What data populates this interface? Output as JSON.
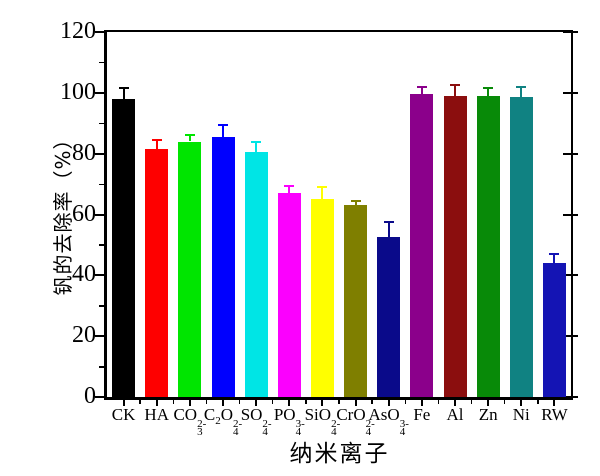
{
  "chart_data": {
    "type": "bar",
    "title": "",
    "xlabel": "纳米离子",
    "ylabel": "钒的去除率（%）",
    "ylim": [
      0,
      120
    ],
    "yticks": [
      0,
      20,
      40,
      60,
      80,
      100,
      120
    ],
    "ytick_minor_interval": 10,
    "grid": false,
    "legend": "none",
    "error_bars": "upper",
    "axis_color": "#000000",
    "categories": [
      {
        "name": "CK",
        "segments": [
          {
            "t": "CK"
          }
        ]
      },
      {
        "name": "HA",
        "segments": [
          {
            "t": "HA"
          }
        ]
      },
      {
        "name": "CO3 2-",
        "segments": [
          {
            "t": "CO"
          },
          {
            "sub": "3",
            "sup": "2-"
          }
        ]
      },
      {
        "name": "C2O4 2-",
        "segments": [
          {
            "t": "C"
          },
          {
            "sub": "2"
          },
          {
            "t": "O"
          },
          {
            "sub": "4",
            "sup": "2-"
          }
        ]
      },
      {
        "name": "SO4 2-",
        "segments": [
          {
            "t": "SO"
          },
          {
            "sub": "4",
            "sup": "2-"
          }
        ]
      },
      {
        "name": "PO4 3-",
        "segments": [
          {
            "t": "PO"
          },
          {
            "sub": "4",
            "sup": "3-"
          }
        ]
      },
      {
        "name": "SiO4 2-",
        "segments": [
          {
            "t": "SiO"
          },
          {
            "sub": "4",
            "sup": "2-"
          }
        ]
      },
      {
        "name": "CrO4 2-",
        "segments": [
          {
            "t": "CrO"
          },
          {
            "sub": "4",
            "sup": "2-"
          }
        ]
      },
      {
        "name": "AsO4 3-",
        "segments": [
          {
            "t": "AsO"
          },
          {
            "sub": "4",
            "sup": "3-"
          }
        ]
      },
      {
        "name": "Fe",
        "segments": [
          {
            "t": "Fe"
          }
        ]
      },
      {
        "name": "Al",
        "segments": [
          {
            "t": "Al"
          }
        ]
      },
      {
        "name": "Zn",
        "segments": [
          {
            "t": "Zn"
          }
        ]
      },
      {
        "name": "Ni",
        "segments": [
          {
            "t": "Ni"
          }
        ]
      },
      {
        "name": "RW",
        "segments": [
          {
            "t": "RW"
          }
        ]
      }
    ],
    "values": [
      98,
      81.5,
      84,
      85.5,
      80.5,
      67,
      65,
      63,
      52.5,
      99.5,
      99,
      99,
      98.5,
      44
    ],
    "errors": [
      3.5,
      3,
      2,
      4,
      3.5,
      2.5,
      4,
      1.5,
      5,
      2.5,
      3.5,
      2.5,
      3.5,
      3
    ],
    "colors": [
      "#000000",
      "#FE0000",
      "#00E500",
      "#0000FE",
      "#00E5E5",
      "#FB00FE",
      "#FFFF00",
      "#7F7F00",
      "#0A0A8A",
      "#8B008B",
      "#8B0E0E",
      "#088A08",
      "#108282",
      "#1414B4"
    ]
  }
}
